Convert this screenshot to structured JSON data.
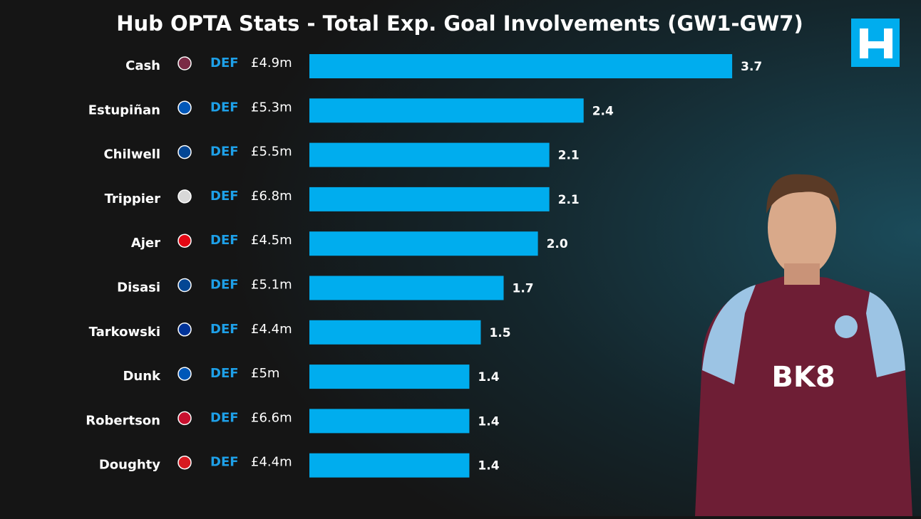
{
  "chart_data": {
    "type": "hbar",
    "title": "Hub OPTA Stats - Total Exp. Goal Involvements (GW1-GW7)",
    "categories": [
      "Cash",
      "Estupiñan",
      "Chilwell",
      "Trippier",
      "Ajer",
      "Disasi",
      "Tarkowski",
      "Dunk",
      "Robertson",
      "Doughty"
    ],
    "positions": [
      "DEF",
      "DEF",
      "DEF",
      "DEF",
      "DEF",
      "DEF",
      "DEF",
      "DEF",
      "DEF",
      "DEF"
    ],
    "prices": [
      "£4.9m",
      "£5.3m",
      "£5.5m",
      "£6.8m",
      "£4.5m",
      "£5.1m",
      "£4.4m",
      "£5m",
      "£6.6m",
      "£4.4m"
    ],
    "values": [
      3.7,
      2.4,
      2.1,
      2.1,
      2.0,
      1.7,
      1.5,
      1.4,
      1.4,
      1.4
    ],
    "value_labels": [
      "3.7",
      "2.4",
      "2.1",
      "2.1",
      "2.0",
      "1.7",
      "1.5",
      "1.4",
      "1.4",
      "1.4"
    ],
    "crest_colors": [
      "#7a2a45",
      "#0057b8",
      "#034694",
      "#d8d8d8",
      "#e30613",
      "#034694",
      "#003399",
      "#0057b8",
      "#c8102e",
      "#d71920"
    ],
    "color": "#00adee",
    "position_color": "#1ea0e8"
  },
  "player_photo": {
    "sponsor": "BK8"
  }
}
